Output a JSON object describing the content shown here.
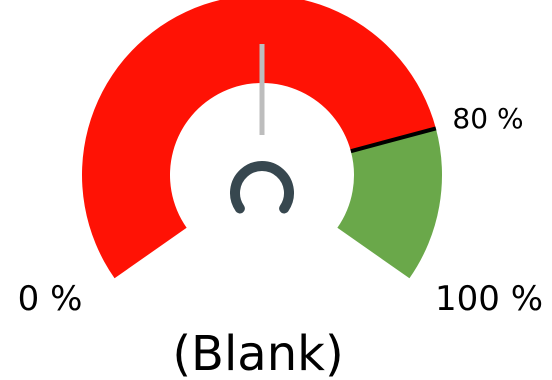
{
  "chart_data": {
    "type": "gauge",
    "min": 0,
    "max": 100,
    "min_label": "0 %",
    "max_label": "100 %",
    "threshold": 80,
    "threshold_label": "80 %",
    "value": 50,
    "value_label": "(Blank)",
    "bands": [
      {
        "from": 0,
        "to": 80,
        "color": "#FF1205"
      },
      {
        "from": 80,
        "to": 100,
        "color": "#6AA84A"
      }
    ],
    "threshold_color": "#000000",
    "needle_color": "#BDBDBD",
    "hub_color": "#37474F"
  }
}
